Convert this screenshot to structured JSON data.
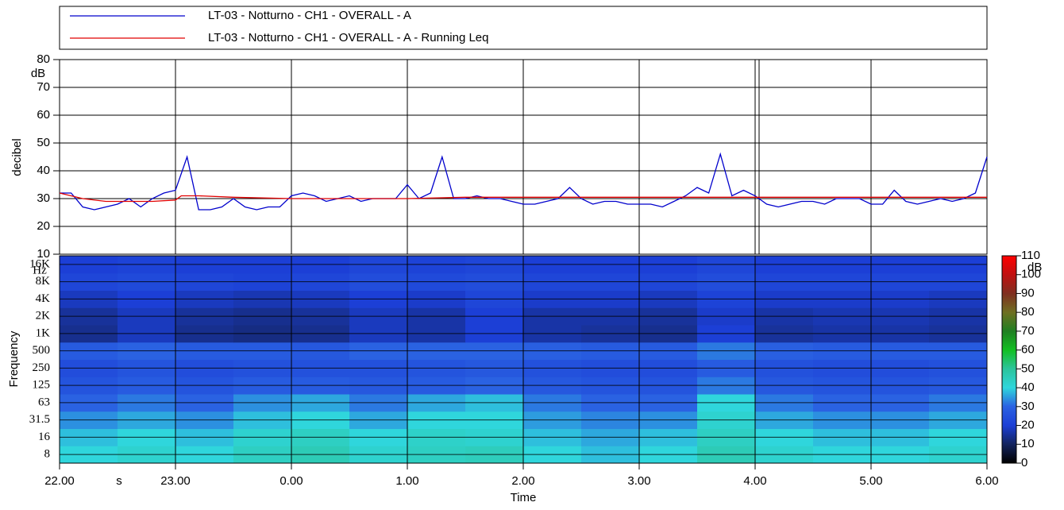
{
  "chart_data": [
    {
      "type": "line",
      "y_label": "decibel",
      "y_unit": "dB",
      "xlim": [
        0,
        8
      ],
      "ylim": [
        10,
        80
      ],
      "yticks": [
        10,
        20,
        30,
        40,
        50,
        60,
        70,
        80
      ],
      "grid": true,
      "series": [
        {
          "name": "LT-03 - Notturno - CH1 - OVERALL - A",
          "color": "#0000cc",
          "x": [
            0,
            0.1,
            0.2,
            0.3,
            0.4,
            0.5,
            0.6,
            0.7,
            0.8,
            0.9,
            1,
            1.1,
            1.2,
            1.3,
            1.4,
            1.5,
            1.6,
            1.7,
            1.8,
            1.9,
            2,
            2.1,
            2.2,
            2.3,
            2.4,
            2.5,
            2.6,
            2.7,
            2.8,
            2.9,
            3,
            3.1,
            3.2,
            3.3,
            3.4,
            3.5,
            3.6,
            3.7,
            3.8,
            3.9,
            4,
            4.1,
            4.2,
            4.3,
            4.4,
            4.5,
            4.6,
            4.7,
            4.8,
            4.9,
            5,
            5.1,
            5.2,
            5.3,
            5.4,
            5.5,
            5.6,
            5.7,
            5.8,
            5.9,
            6,
            6.1,
            6.2,
            6.3,
            6.4,
            6.5,
            6.6,
            6.7,
            6.8,
            6.9,
            7,
            7.1,
            7.2,
            7.3,
            7.4,
            7.5,
            7.6,
            7.7,
            7.8,
            7.9,
            8
          ],
          "values": [
            32,
            32,
            27,
            26,
            27,
            28,
            30,
            27,
            30,
            32,
            33,
            45,
            26,
            26,
            27,
            30,
            27,
            26,
            27,
            27,
            31,
            32,
            31,
            29,
            30,
            31,
            29,
            30,
            30,
            30,
            35,
            30,
            32,
            45,
            30,
            30,
            31,
            30,
            30,
            29,
            28,
            28,
            29,
            30,
            34,
            30,
            28,
            29,
            29,
            28,
            28,
            28,
            27,
            29,
            31,
            34,
            32,
            46,
            31,
            33,
            31,
            28,
            27,
            28,
            29,
            29,
            28,
            30,
            30,
            30,
            28,
            28,
            33,
            29,
            28,
            29,
            30,
            29,
            30,
            32,
            45
          ]
        },
        {
          "name": "LT-03 - Notturno - CH1 - OVERALL - A - Running Leq",
          "color": "#e00000",
          "x": [
            0,
            0.2,
            0.4,
            0.6,
            0.8,
            1,
            1.05,
            1.2,
            1.5,
            2,
            2.5,
            3,
            3.5,
            4,
            5,
            6,
            7,
            8
          ],
          "values": [
            32,
            30,
            29,
            29,
            29,
            29.5,
            31,
            31,
            30.5,
            30,
            30,
            30,
            30.5,
            30.5,
            30.5,
            30.5,
            30.5,
            30.5
          ]
        }
      ]
    },
    {
      "type": "heatmap",
      "x_label": "Time",
      "x_unit": "s",
      "y_label": "Frequency",
      "y_unit": "Hz",
      "xlim": [
        0,
        8
      ],
      "xticks": [
        {
          "value": 0,
          "label": "22.00"
        },
        {
          "value": 1,
          "label": "23.00"
        },
        {
          "value": 2,
          "label": "0.00"
        },
        {
          "value": 3,
          "label": "1.00"
        },
        {
          "value": 4,
          "label": "2.00"
        },
        {
          "value": 5,
          "label": "3.00"
        },
        {
          "value": 6,
          "label": "4.00"
        },
        {
          "value": 7,
          "label": "5.00"
        },
        {
          "value": 8,
          "label": "6.00"
        }
      ],
      "bins": [
        0,
        0.5,
        1,
        1.5,
        2,
        2.5,
        3,
        3.5,
        4,
        4.5,
        5,
        5.5,
        6,
        6.5,
        7,
        7.5,
        8
      ],
      "categories": [
        "8",
        "16",
        "31.5",
        "63",
        "125",
        "250",
        "500",
        "1K",
        "2K",
        "4K",
        "8K",
        "16K"
      ],
      "z": [
        [
          40,
          42,
          40,
          44,
          46,
          42,
          44,
          45,
          40,
          38,
          40,
          46,
          42,
          40,
          40,
          42
        ],
        [
          38,
          40,
          38,
          42,
          44,
          40,
          43,
          42,
          38,
          36,
          38,
          44,
          40,
          38,
          38,
          40
        ],
        [
          34,
          36,
          34,
          38,
          40,
          36,
          40,
          40,
          35,
          33,
          34,
          42,
          36,
          34,
          34,
          36
        ],
        [
          30,
          32,
          30,
          34,
          36,
          32,
          36,
          38,
          32,
          30,
          30,
          40,
          32,
          30,
          30,
          32
        ],
        [
          26,
          28,
          26,
          28,
          28,
          27,
          28,
          30,
          27,
          26,
          26,
          32,
          27,
          26,
          26,
          27
        ],
        [
          24,
          26,
          24,
          25,
          25,
          25,
          26,
          27,
          25,
          24,
          24,
          28,
          25,
          24,
          24,
          25
        ],
        [
          28,
          30,
          28,
          28,
          27,
          30,
          30,
          30,
          29,
          28,
          28,
          32,
          29,
          28,
          28,
          28
        ],
        [
          14,
          18,
          14,
          13,
          14,
          18,
          16,
          20,
          16,
          15,
          14,
          20,
          15,
          16,
          16,
          15
        ],
        [
          15,
          18,
          15,
          14,
          15,
          18,
          16,
          20,
          16,
          16,
          15,
          19,
          16,
          17,
          17,
          16
        ],
        [
          18,
          20,
          18,
          17,
          18,
          20,
          19,
          22,
          19,
          19,
          18,
          21,
          19,
          19,
          19,
          18
        ],
        [
          22,
          23,
          22,
          21,
          22,
          24,
          23,
          24,
          22,
          22,
          22,
          24,
          22,
          22,
          22,
          22
        ],
        [
          20,
          21,
          20,
          20,
          20,
          22,
          21,
          22,
          20,
          20,
          20,
          22,
          20,
          20,
          20,
          20
        ]
      ],
      "colorbar_label": "dB",
      "clim": [
        0,
        110
      ],
      "cticks": [
        0,
        10,
        20,
        30,
        40,
        50,
        60,
        70,
        80,
        90,
        100,
        110
      ],
      "colorscale": [
        "#000000",
        "#13245e",
        "#1c3fd6",
        "#2a62e2",
        "#2fd6dc",
        "#2cc49c",
        "#12bf22",
        "#1f7f22",
        "#6f6f22",
        "#7f2f20",
        "#c01010",
        "#ff0000"
      ]
    }
  ]
}
